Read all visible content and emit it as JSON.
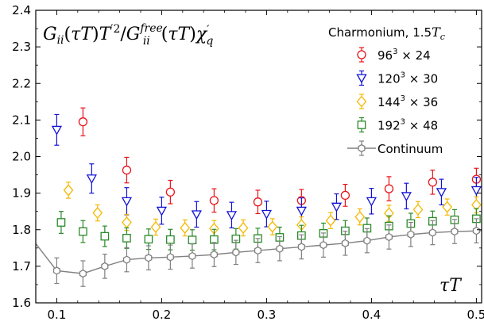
{
  "chart_data": {
    "type": "scatter",
    "title": "G_ii(τT)T'^2/G_ii^free(τT)χ'_q",
    "xlabel": "τT",
    "ylabel": "",
    "xlim": [
      0.08,
      0.505
    ],
    "ylim": [
      1.6,
      2.4
    ],
    "xticks": [
      0.1,
      0.2,
      0.3,
      0.4,
      0.5
    ],
    "xtick_labels": [
      "0.1",
      "0.2",
      "0.3",
      "0.4",
      "0.5"
    ],
    "yticks": [
      1.6,
      1.7,
      1.8,
      1.9,
      2.0,
      2.1,
      2.2,
      2.3,
      2.4
    ],
    "ytick_labels": [
      "1.6",
      "1.7",
      "1.8",
      "1.9",
      "2.0",
      "2.1",
      "2.2",
      "2.3",
      "2.4"
    ],
    "grid": false,
    "legend_title": "Charmonium, 1.5T_c",
    "legend_position": "top-right",
    "series": [
      {
        "name": "96^3 × 24",
        "color": "#e8141b",
        "marker": "circle",
        "x": [
          0.125,
          0.1667,
          0.2083,
          0.25,
          0.2917,
          0.3333,
          0.375,
          0.4167,
          0.4583,
          0.5
        ],
        "y": [
          2.095,
          1.963,
          1.903,
          1.88,
          1.876,
          1.88,
          1.894,
          1.912,
          1.93,
          1.938
        ],
        "err": [
          0.038,
          0.035,
          0.032,
          0.032,
          0.032,
          0.03,
          0.03,
          0.033,
          0.033,
          0.03
        ]
      },
      {
        "name": "120^3 × 30",
        "color": "#1212d6",
        "marker": "triangle-down",
        "x": [
          0.1,
          0.1333,
          0.1667,
          0.2,
          0.2333,
          0.2667,
          0.3,
          0.3333,
          0.3667,
          0.4,
          0.4333,
          0.4667,
          0.5
        ],
        "y": [
          2.073,
          1.94,
          1.878,
          1.852,
          1.842,
          1.84,
          1.843,
          1.852,
          1.863,
          1.878,
          1.892,
          1.903,
          1.908
        ],
        "err": [
          0.042,
          0.04,
          0.037,
          0.037,
          0.035,
          0.035,
          0.035,
          0.035,
          0.035,
          0.035,
          0.035,
          0.035,
          0.035
        ]
      },
      {
        "name": "144^3 × 36",
        "color": "#f5b800",
        "marker": "diamond",
        "x": [
          0.1111,
          0.1389,
          0.1667,
          0.1944,
          0.2222,
          0.25,
          0.2778,
          0.3056,
          0.3333,
          0.3611,
          0.3889,
          0.4167,
          0.4444,
          0.4722,
          0.5
        ],
        "y": [
          1.908,
          1.846,
          1.82,
          1.807,
          1.805,
          1.803,
          1.805,
          1.808,
          1.813,
          1.825,
          1.835,
          1.845,
          1.855,
          1.862,
          1.868
        ],
        "err": [
          0.022,
          0.022,
          0.022,
          0.022,
          0.022,
          0.022,
          0.022,
          0.022,
          0.022,
          0.022,
          0.022,
          0.022,
          0.022,
          0.022,
          0.022
        ]
      },
      {
        "name": "192^3 × 48",
        "color": "#2a8a2a",
        "marker": "square",
        "x": [
          0.1042,
          0.125,
          0.1458,
          0.1667,
          0.1875,
          0.2083,
          0.2292,
          0.25,
          0.2708,
          0.2917,
          0.3125,
          0.3333,
          0.3542,
          0.375,
          0.3958,
          0.4167,
          0.4375,
          0.4583,
          0.4792,
          0.5
        ],
        "y": [
          1.82,
          1.795,
          1.782,
          1.777,
          1.774,
          1.773,
          1.772,
          1.773,
          1.775,
          1.776,
          1.779,
          1.784,
          1.79,
          1.797,
          1.804,
          1.81,
          1.817,
          1.823,
          1.827,
          1.83
        ],
        "err": [
          0.03,
          0.03,
          0.028,
          0.028,
          0.028,
          0.028,
          0.028,
          0.028,
          0.028,
          0.028,
          0.028,
          0.028,
          0.028,
          0.028,
          0.028,
          0.028,
          0.028,
          0.028,
          0.028,
          0.028
        ]
      },
      {
        "name": "Continuum",
        "color": "#808080",
        "marker": "hexagon",
        "x": [
          0.1,
          0.125,
          0.1458,
          0.1667,
          0.1875,
          0.2083,
          0.2292,
          0.25,
          0.2708,
          0.2917,
          0.3125,
          0.3333,
          0.3542,
          0.375,
          0.3958,
          0.4167,
          0.4375,
          0.4583,
          0.4792,
          0.5
        ],
        "y": [
          1.688,
          1.68,
          1.7,
          1.718,
          1.723,
          1.725,
          1.728,
          1.732,
          1.738,
          1.743,
          1.748,
          1.753,
          1.758,
          1.763,
          1.77,
          1.78,
          1.787,
          1.792,
          1.795,
          1.797
        ],
        "err": [
          0.035,
          0.035,
          0.033,
          0.033,
          0.033,
          0.033,
          0.033,
          0.033,
          0.033,
          0.033,
          0.033,
          0.033,
          0.033,
          0.033,
          0.033,
          0.033,
          0.033,
          0.033,
          0.033,
          0.033
        ],
        "line_x": [
          0.08,
          0.1,
          0.125,
          0.1458,
          0.1667,
          0.1875,
          0.2083,
          0.2292,
          0.25,
          0.2708,
          0.2917,
          0.3125,
          0.3333,
          0.3542,
          0.375,
          0.3958,
          0.4167,
          0.4375,
          0.4583,
          0.4792,
          0.505
        ],
        "line_y": [
          1.762,
          1.688,
          1.68,
          1.7,
          1.718,
          1.723,
          1.725,
          1.728,
          1.732,
          1.738,
          1.743,
          1.748,
          1.753,
          1.758,
          1.763,
          1.77,
          1.78,
          1.787,
          1.792,
          1.795,
          1.797
        ]
      }
    ]
  }
}
